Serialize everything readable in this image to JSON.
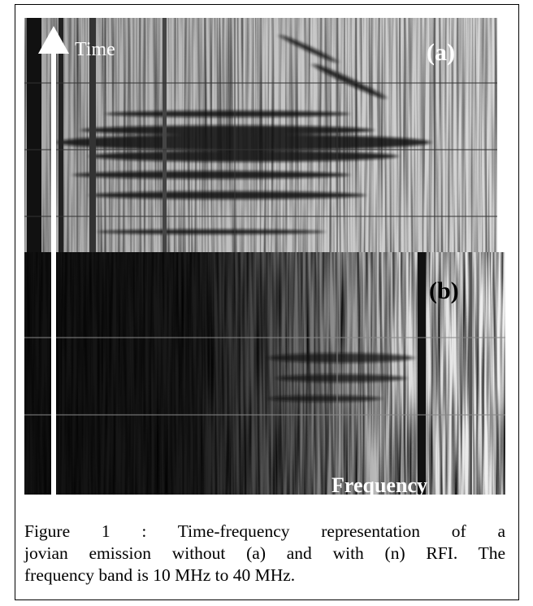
{
  "figure": {
    "label_time": "Time",
    "label_a": "(a)",
    "label_b": "(b)",
    "label_frequency": "Frequency"
  },
  "caption": {
    "lines": [
      "Figure 1 : Time-frequency representation of a",
      "jovian emission without (a) and with (n) RFI. The",
      "frequency band is 10 MHz to 40 MHz."
    ]
  }
}
